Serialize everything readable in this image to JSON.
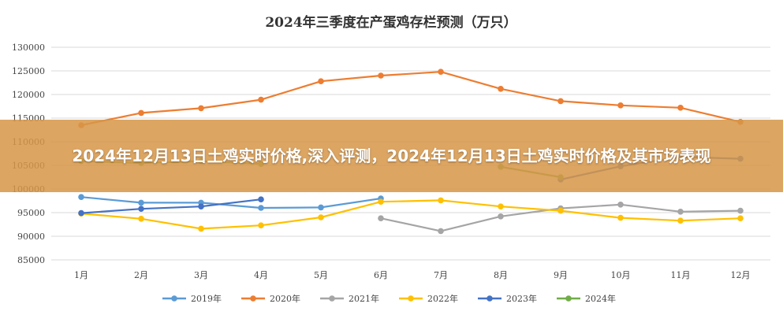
{
  "banner": {
    "text": "2024年12月13日土鸡实时价格,深入评测，2024年12月13日土鸡实时价格及其市场表现"
  },
  "chart_data": {
    "type": "line",
    "title": "2024年三季度在产蛋鸡存栏预测（万只）",
    "categories": [
      "1月",
      "2月",
      "3月",
      "4月",
      "5月",
      "6月",
      "7月",
      "8月",
      "9月",
      "10月",
      "11月",
      "12月"
    ],
    "ylim": [
      85000,
      130000
    ],
    "yticks": [
      85000,
      90000,
      95000,
      100000,
      105000,
      110000,
      115000,
      120000,
      125000,
      130000
    ],
    "grid": true,
    "legend_position": "bottom",
    "series": [
      {
        "name": "2019年",
        "color": "#5b9bd5",
        "values": [
          98300,
          97100,
          97100,
          96000,
          96100,
          98000,
          null,
          null,
          null,
          null,
          null,
          null
        ]
      },
      {
        "name": "2020年",
        "color": "#ed7d31",
        "values": [
          113500,
          116100,
          117100,
          118900,
          122800,
          124000,
          124800,
          121200,
          118600,
          117700,
          117200,
          114200
        ]
      },
      {
        "name": "2021年",
        "color": "#a5a5a5",
        "values": [
          null,
          null,
          null,
          null,
          null,
          93800,
          91100,
          94200,
          95900,
          96700,
          95200,
          95400
        ]
      },
      {
        "name": "2022年",
        "color": "#ffc000",
        "values": [
          94800,
          93700,
          91600,
          92300,
          94000,
          97300,
          97600,
          96300,
          95400,
          93900,
          93300,
          93800
        ]
      },
      {
        "name": "2023年",
        "color": "#4472c4",
        "values": [
          94900,
          95800,
          96300,
          97800,
          null,
          null,
          null,
          null,
          102000,
          104800,
          106800,
          106400
        ]
      },
      {
        "name": "2024年",
        "color": "#70ad47",
        "values": [
          105900,
          105500,
          105900,
          105300,
          null,
          null,
          null,
          104700,
          102500,
          null,
          null,
          null
        ]
      }
    ]
  }
}
